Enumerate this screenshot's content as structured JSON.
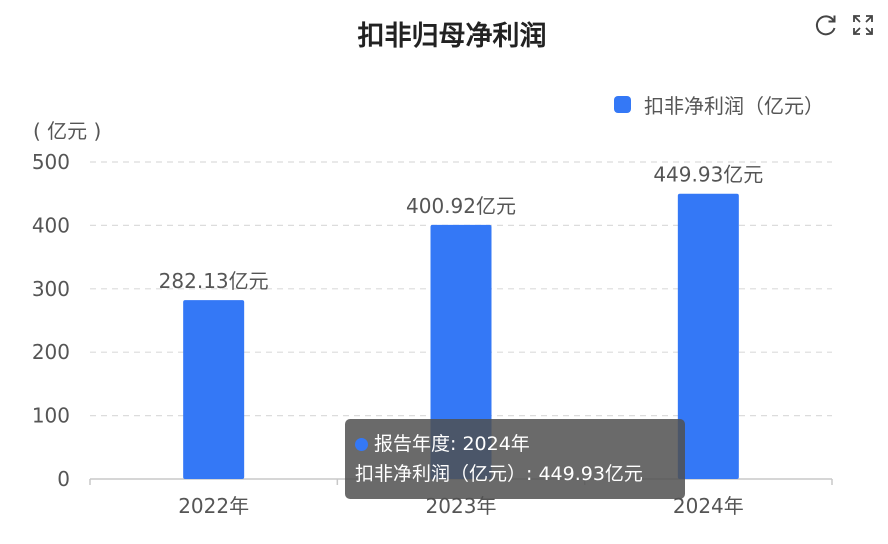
{
  "title": "扣非归母净利润",
  "toolbar": {
    "refresh_icon": "refresh-icon",
    "fullscreen_icon": "fullscreen-icon"
  },
  "unit_label": "( 亿元 )",
  "legend": {
    "label": "扣非净利润（亿元）",
    "color": "#3478f6"
  },
  "tooltip": {
    "line1": "报告年度: 2024年",
    "line2": "扣非净利润（亿元）: 449.93亿元"
  },
  "chart_data": {
    "type": "bar",
    "categories": [
      "2022年",
      "2023年",
      "2024年"
    ],
    "series": [
      {
        "name": "扣非净利润（亿元）",
        "values": [
          282.13,
          400.92,
          449.93
        ],
        "labels": [
          "282.13亿元",
          "400.92亿元",
          "449.93亿元"
        ],
        "color": "#3478f6"
      }
    ],
    "yticks": [
      0,
      100,
      200,
      300,
      400,
      500
    ],
    "ylim": [
      0,
      500
    ],
    "ylabel": "( 亿元 )",
    "grid": true,
    "legend_position": "top-right"
  }
}
